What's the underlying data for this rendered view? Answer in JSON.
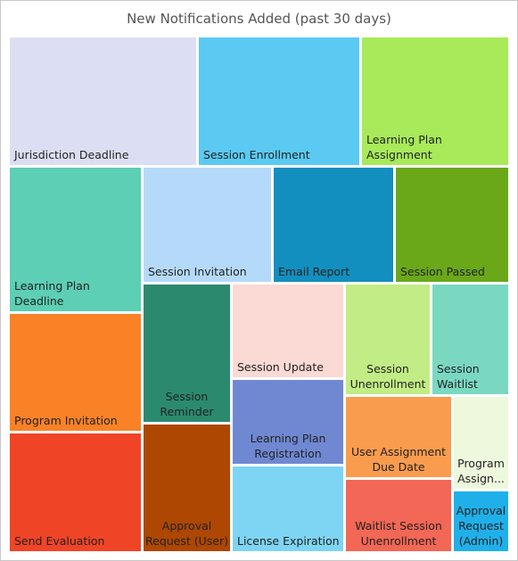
{
  "chart_data": {
    "type": "treemap",
    "title": "New Notifications Added (past 30 days)",
    "items": [
      {
        "label": "Jurisdiction Deadline",
        "color": "#dcdff3"
      },
      {
        "label": "Session Enrollment",
        "color": "#5bcaf3"
      },
      {
        "label": "Learning Plan Assignment",
        "color": "#a8ea5a"
      },
      {
        "label": "Learning Plan Deadline",
        "color": "#5dcfb4"
      },
      {
        "label": "Session Invitation",
        "color": "#b5daf9"
      },
      {
        "label": "Email Report",
        "color": "#128fbf"
      },
      {
        "label": "Session Passed",
        "color": "#6aa81a"
      },
      {
        "label": "Program Invitation",
        "color": "#fa8226"
      },
      {
        "label": "Session\nReminder",
        "color": "#2b8a6e"
      },
      {
        "label": "Session Update",
        "color": "#fbd9d4"
      },
      {
        "label": "Session\nUnenrollment",
        "color": "#c2ec85"
      },
      {
        "label": "Session\nWaitlist",
        "color": "#7ad8c1"
      },
      {
        "label": "Learning Plan\nRegistration",
        "color": "#7088d2"
      },
      {
        "label": "User Assignment\nDue Date",
        "color": "#fa9c4e"
      },
      {
        "label": "Program\nAssign...",
        "color": "#edf8dd"
      },
      {
        "label": "Send Evaluation",
        "color": "#f04427"
      },
      {
        "label": "Approval\nRequest (User)",
        "color": "#ad4702"
      },
      {
        "label": "License Expiration",
        "color": "#7ed5f3"
      },
      {
        "label": "Waitlist Session\nUnenrollment",
        "color": "#f26755"
      },
      {
        "label": "Approval\nRequest\n(Admin)",
        "color": "#1fb0ea"
      }
    ]
  }
}
